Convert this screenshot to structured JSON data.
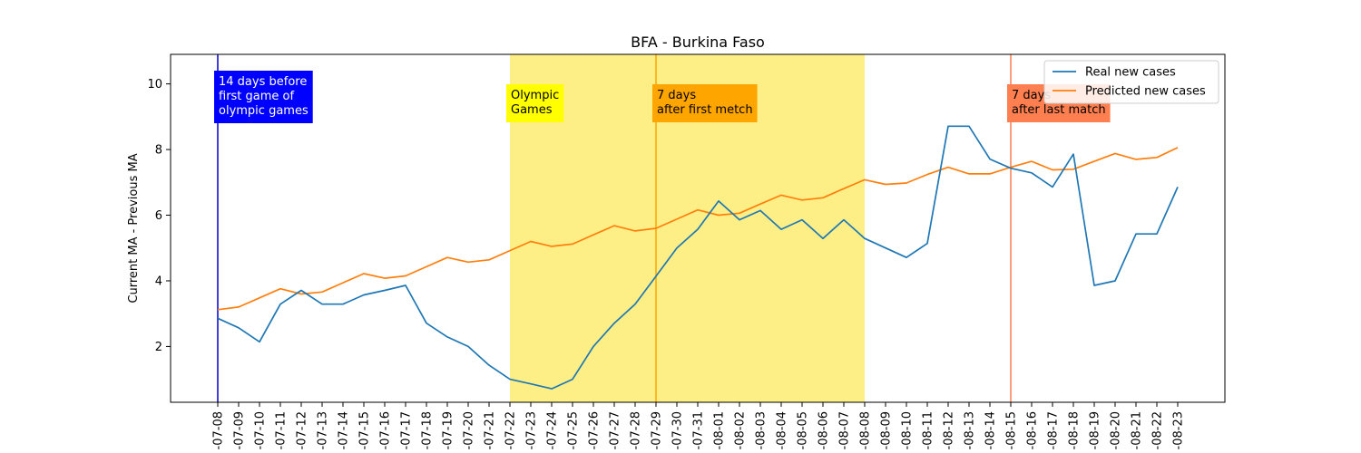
{
  "chart_data": {
    "type": "line",
    "title": "BFA - Burkina Faso",
    "xlabel": "",
    "ylabel": "Current MA - Previous MA",
    "x": [
      "2021-07-08",
      "2021-07-09",
      "2021-07-10",
      "2021-07-11",
      "2021-07-12",
      "2021-07-13",
      "2021-07-14",
      "2021-07-15",
      "2021-07-16",
      "2021-07-17",
      "2021-07-18",
      "2021-07-19",
      "2021-07-20",
      "2021-07-21",
      "2021-07-22",
      "2021-07-23",
      "2021-07-24",
      "2021-07-25",
      "2021-07-26",
      "2021-07-27",
      "2021-07-28",
      "2021-07-29",
      "2021-07-30",
      "2021-07-31",
      "2021-08-01",
      "2021-08-02",
      "2021-08-03",
      "2021-08-04",
      "2021-08-05",
      "2021-08-06",
      "2021-08-07",
      "2021-08-08",
      "2021-08-09",
      "2021-08-10",
      "2021-08-11",
      "2021-08-12",
      "2021-08-13",
      "2021-08-14",
      "2021-08-15",
      "2021-08-16",
      "2021-08-17",
      "2021-08-18",
      "2021-08-19",
      "2021-08-20",
      "2021-08-21",
      "2021-08-22",
      "2021-08-23"
    ],
    "tick_labels": [
      "-07-08",
      "-07-09",
      "-07-10",
      "-07-11",
      "-07-12",
      "-07-13",
      "-07-14",
      "-07-15",
      "-07-16",
      "-07-17",
      "-07-18",
      "-07-19",
      "-07-20",
      "-07-21",
      "-07-22",
      "-07-23",
      "-07-24",
      "-07-25",
      "-07-26",
      "-07-27",
      "-07-28",
      "-07-29",
      "-07-30",
      "-07-31",
      "-08-01",
      "-08-02",
      "-08-03",
      "-08-04",
      "-08-05",
      "-08-06",
      "-08-07",
      "-08-08",
      "-08-09",
      "-08-10",
      "-08-11",
      "-08-12",
      "-08-13",
      "-08-14",
      "-08-15",
      "-08-16",
      "-08-17",
      "-08-18",
      "-08-19",
      "-08-20",
      "-08-21",
      "-08-22",
      "-08-23"
    ],
    "series": [
      {
        "name": "Real new cases",
        "color": "#1f77b4",
        "values": [
          2.86,
          2.57,
          2.14,
          3.29,
          3.71,
          3.29,
          3.29,
          3.57,
          3.71,
          3.86,
          2.71,
          2.29,
          2.0,
          1.43,
          1.0,
          0.86,
          0.71,
          1.0,
          2.0,
          2.71,
          3.29,
          4.14,
          5.0,
          5.57,
          6.43,
          5.86,
          6.14,
          5.57,
          5.86,
          5.29,
          5.86,
          5.29,
          5.0,
          4.71,
          5.14,
          8.71,
          8.71,
          7.71,
          7.43,
          7.29,
          6.86,
          7.86,
          3.86,
          4.0,
          5.43,
          5.43,
          6.86
        ]
      },
      {
        "name": "Predicted new cases",
        "color": "#ff7f0e",
        "values": [
          3.12,
          3.2,
          3.48,
          3.76,
          3.6,
          3.66,
          3.94,
          4.22,
          4.08,
          4.15,
          4.43,
          4.71,
          4.57,
          4.64,
          4.92,
          5.2,
          5.05,
          5.12,
          5.4,
          5.68,
          5.52,
          5.6,
          5.88,
          6.16,
          6.0,
          6.06,
          6.34,
          6.61,
          6.46,
          6.53,
          6.81,
          7.08,
          6.94,
          6.98,
          7.24,
          7.46,
          7.26,
          7.26,
          7.46,
          7.64,
          7.38,
          7.4,
          7.64,
          7.88,
          7.7,
          7.76,
          8.06
        ]
      }
    ],
    "ylim": [
      0.3,
      10.9
    ],
    "yticks": [
      2,
      4,
      6,
      8,
      10
    ],
    "legend": "top-right",
    "grid": false,
    "shaded_regions": [
      {
        "start": "2021-07-22",
        "end": "2021-08-08",
        "color": "#fdef85",
        "label": "Olympic Games"
      }
    ],
    "vlines": [
      {
        "x": "2021-07-08",
        "color": "#0000cc",
        "label_lines": [
          "14 days before",
          "first game of",
          "olympic games"
        ],
        "box_color": "#0000ff",
        "text_color": "#ffffff"
      },
      {
        "x": "2021-07-22",
        "color": "#ffff00",
        "label_lines": [
          "Olympic",
          "Games"
        ],
        "box_color": "#ffff00",
        "text_color": "#000000",
        "no_line": true
      },
      {
        "x": "2021-07-29",
        "color": "#ffa500",
        "label_lines": [
          "7 days",
          "after first metch"
        ],
        "box_color": "#ffa500",
        "text_color": "#000000"
      },
      {
        "x": "2021-08-15",
        "color": "#ff7f50",
        "label_lines": [
          "7 days",
          "after last match"
        ],
        "box_color": "#ff7f50",
        "text_color": "#000000"
      }
    ]
  }
}
